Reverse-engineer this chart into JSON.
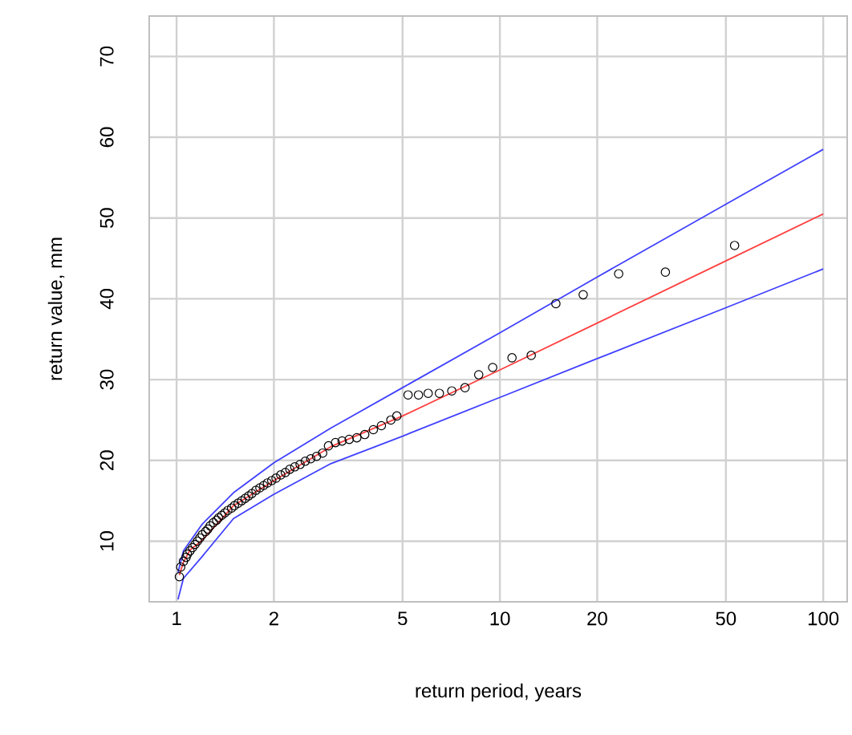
{
  "chart_data": {
    "type": "line",
    "xlabel": "return period, years",
    "ylabel": "return value, mm",
    "log": "x",
    "grid": true,
    "xlim": [
      0.823,
      118.6
    ],
    "ylim": [
      2.5,
      75
    ],
    "xticks": [
      1,
      2,
      5,
      10,
      20,
      50,
      100
    ],
    "yticks": [
      10,
      20,
      30,
      40,
      50,
      60,
      70
    ],
    "series": [
      {
        "color": "#4040ff",
        "marker": "none",
        "x": [
          1.01,
          1.05,
          1.2,
          1.5,
          2,
          3,
          5,
          10,
          20,
          50,
          100
        ],
        "values": [
          6.1,
          8.8,
          12.1,
          16.0,
          19.7,
          24.0,
          29.0,
          35.8,
          42.7,
          51.7,
          58.5
        ]
      },
      {
        "color": "#4040ff",
        "marker": "none",
        "x": [
          1.01,
          1.05,
          1.2,
          1.5,
          2,
          3,
          5,
          10,
          20,
          50,
          100
        ],
        "values": [
          2.8,
          5.4,
          8.1,
          12.8,
          15.8,
          19.6,
          23.0,
          27.8,
          32.6,
          38.9,
          43.7
        ]
      },
      {
        "color": "#ff4040",
        "marker": "none",
        "x": [
          1.02,
          1.05,
          1.1,
          1.2,
          1.5,
          2,
          3,
          5,
          10,
          20,
          50,
          100
        ],
        "values": [
          5.8,
          7.4,
          8.9,
          10.1,
          14.4,
          17.5,
          21.7,
          25.5,
          31.2,
          37.0,
          44.7,
          50.5
        ]
      },
      {
        "type": "scatter",
        "marker": "circle",
        "color": "#000000",
        "x": [
          53.2,
          32.5,
          23.3,
          18.1,
          14.9,
          12.5,
          10.9,
          9.5,
          8.6,
          7.8,
          7.1,
          6.5,
          6.0,
          5.6,
          5.2,
          4.8,
          4.6,
          4.3,
          4.06,
          3.82,
          3.61,
          3.42,
          3.25,
          3.1,
          2.95,
          2.83,
          2.71,
          2.6,
          2.5,
          2.41,
          2.32,
          2.24,
          2.17,
          2.1,
          2.03,
          1.97,
          1.91,
          1.86,
          1.81,
          1.76,
          1.71,
          1.67,
          1.63,
          1.59,
          1.55,
          1.51,
          1.48,
          1.44,
          1.41,
          1.38,
          1.35,
          1.33,
          1.3,
          1.27,
          1.25,
          1.23,
          1.2,
          1.18,
          1.16,
          1.14,
          1.12,
          1.1,
          1.08,
          1.07,
          1.05,
          1.03,
          1.02
        ],
        "values": [
          46.6,
          43.3,
          43.1,
          40.5,
          39.4,
          33.0,
          32.7,
          31.5,
          30.6,
          29.0,
          28.6,
          28.3,
          28.3,
          28.1,
          28.1,
          25.5,
          25.0,
          24.3,
          23.8,
          23.2,
          22.8,
          22.6,
          22.4,
          22.2,
          21.8,
          20.9,
          20.5,
          20.2,
          19.9,
          19.5,
          19.2,
          18.9,
          18.5,
          18.2,
          17.8,
          17.5,
          17.2,
          16.9,
          16.6,
          16.3,
          15.9,
          15.6,
          15.3,
          15.0,
          14.7,
          14.4,
          14.1,
          13.8,
          13.5,
          13.2,
          12.9,
          12.6,
          12.3,
          11.9,
          11.5,
          11.2,
          10.8,
          10.4,
          10.0,
          9.6,
          9.2,
          8.8,
          8.4,
          8.0,
          7.5,
          6.8,
          5.6
        ]
      }
    ]
  }
}
